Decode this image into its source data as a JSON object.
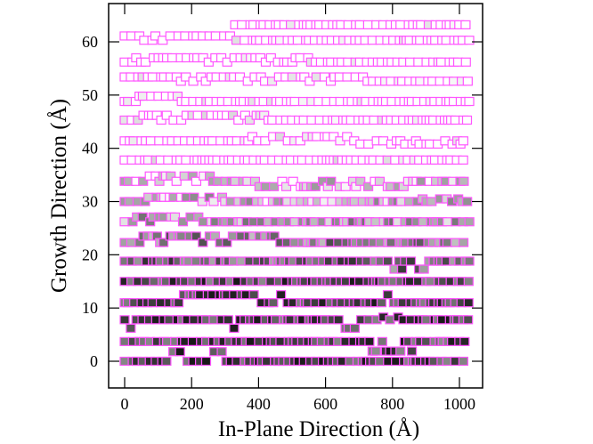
{
  "chart_data": {
    "type": "scatter",
    "title": "",
    "xlabel": "In-Plane Direction (Å)",
    "ylabel": "Growth Direction (Å)",
    "xlim": [
      -45,
      1070
    ],
    "ylim": [
      -5,
      67
    ],
    "xticks": [
      0,
      200,
      400,
      600,
      800,
      1000
    ],
    "yticks": [
      0,
      10,
      20,
      30,
      40,
      50,
      60
    ],
    "grid": false,
    "marker": "square",
    "edge_color": "#ff55ff",
    "x_step": 17,
    "rows": [
      {
        "y": 0,
        "x": [
          0,
          1030
        ],
        "shade": 0.75,
        "bumps": [
          [
            130,
            180,
            1.8
          ],
          [
            250,
            300,
            1.8
          ]
        ]
      },
      {
        "y": 3.7,
        "x": [
          0,
          1030
        ],
        "shade": 0.72,
        "bumps": [
          [
            720,
            860,
            -1.8
          ]
        ]
      },
      {
        "y": 7.8,
        "x": [
          0,
          1030
        ],
        "shade": 0.74,
        "bumps": [
          [
            0,
            20,
            -1.6
          ],
          [
            320,
            340,
            -1.6
          ],
          [
            600,
            700,
            -1.6
          ],
          [
            760,
            820,
            0.5
          ]
        ]
      },
      {
        "y": 11,
        "x": [
          0,
          1030
        ],
        "shade": 0.74,
        "bumps": [
          [
            140,
            480,
            1.5
          ],
          [
            780,
            800,
            1.5
          ]
        ]
      },
      {
        "y": 15,
        "x": [
          0,
          1030
        ],
        "shade": 0.72,
        "bumps": []
      },
      {
        "y": 18.8,
        "x": [
          0,
          1030
        ],
        "shade": 0.6,
        "bumps": [
          [
            800,
            900,
            -1.5
          ]
        ]
      },
      {
        "y": 22.3,
        "x": [
          0,
          1030
        ],
        "shade": 0.5,
        "bumps": [
          [
            40,
            480,
            1.2
          ]
        ]
      },
      {
        "y": 26.2,
        "x": [
          0,
          1030
        ],
        "shade": 0.35,
        "bumps": [
          [
            30,
            250,
            0.9
          ]
        ]
      },
      {
        "y": 30,
        "x": [
          0,
          1030
        ],
        "shade": 0.25,
        "bumps": [
          [
            20,
            300,
            0.8
          ],
          [
            850,
            1000,
            0.5
          ]
        ]
      },
      {
        "y": 33.8,
        "x": [
          0,
          1030
        ],
        "shade": 0.18,
        "bumps": [
          [
            60,
            260,
            1.0
          ],
          [
            400,
            850,
            -1.0
          ]
        ]
      },
      {
        "y": 37.8,
        "x": [
          0,
          1030
        ],
        "shade": 0.1,
        "bumps": [
          [
            480,
            900,
            0
          ]
        ]
      },
      {
        "y": 41.4,
        "x": [
          0,
          1030
        ],
        "shade": 0.08,
        "bumps": [
          [
            380,
            700,
            0.8
          ],
          [
            700,
            1030,
            -0.6
          ]
        ]
      },
      {
        "y": 45.3,
        "x": [
          0,
          1030
        ],
        "shade": 0.08,
        "bumps": [
          [
            40,
            460,
            0.9
          ]
        ]
      },
      {
        "y": 48.8,
        "x": [
          0,
          1030
        ],
        "shade": 0.06,
        "bumps": [
          [
            20,
            160,
            1.0
          ]
        ]
      },
      {
        "y": 52.6,
        "x": [
          0,
          1030
        ],
        "shade": 0.05,
        "bumps": [
          [
            0,
            720,
            0.8
          ]
        ]
      },
      {
        "y": 56.2,
        "x": [
          0,
          1030
        ],
        "shade": 0.05,
        "bumps": [
          [
            0,
            550,
            0.8
          ]
        ]
      },
      {
        "y": 60.3,
        "x": [
          0,
          1030
        ],
        "shade": 0.05,
        "bumps": [
          [
            0,
            330,
            0.8
          ]
        ]
      },
      {
        "y": 63.2,
        "x": [
          330,
          1030
        ],
        "shade": 0.05,
        "bumps": []
      }
    ]
  }
}
